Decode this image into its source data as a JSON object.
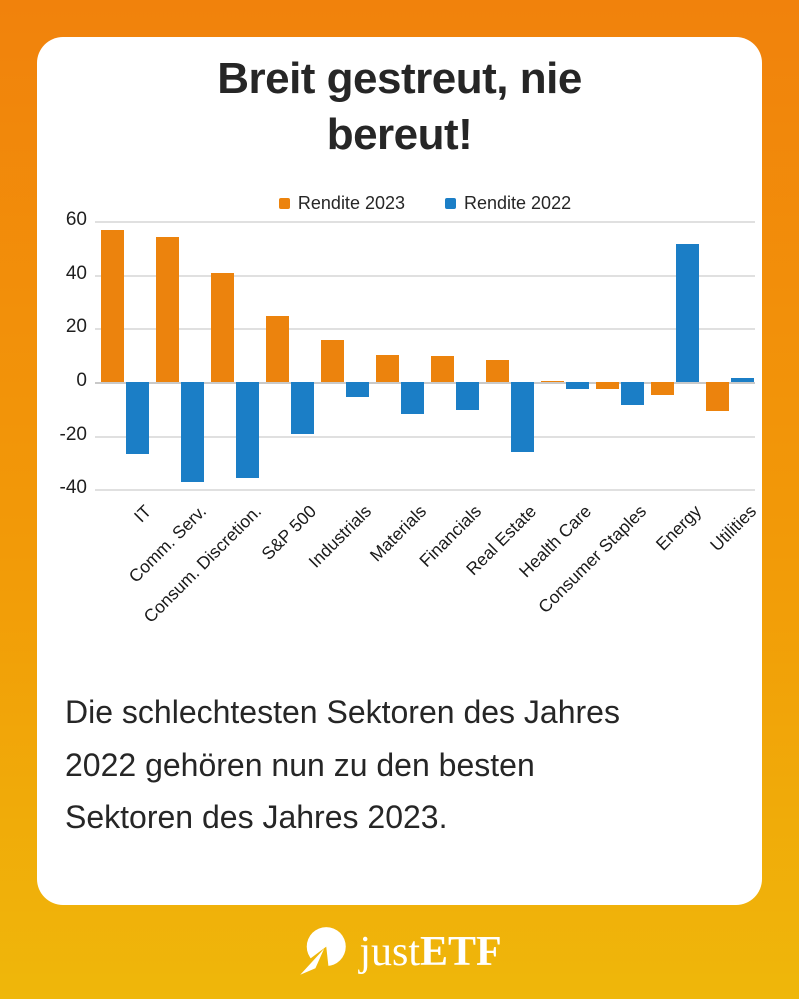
{
  "headline": {
    "lines": [
      "Breit gestreut, nie",
      "bereut!"
    ],
    "full": "Breit gestreut, nie bereut!"
  },
  "caption": {
    "lines": [
      "Die schlechtesten Sektoren des Jahres",
      "2022 gehören nun zu den besten",
      "Sektoren des Jahres 2023."
    ],
    "full": "Die schlechtesten Sektoren des Jahres 2022 gehören nun zu den besten Sektoren des Jahres 2023."
  },
  "footer": {
    "brand_just": "just",
    "brand_etf": "ETF",
    "logo_icon": "justetf-circle-arrow"
  },
  "colors": {
    "background_gradient_top": "#F1820C",
    "background_gradient_bottom": "#EFB70A",
    "card_background": "#FFFFFF",
    "text_dark": "#262626",
    "gridline": "#E0E0E0",
    "rendite_2023_orange": "#EC830D",
    "rendite_2022_blue": "#1B7EC6"
  },
  "chart_data": {
    "type": "bar",
    "title": "",
    "xlabel": "",
    "ylabel": "",
    "categories": [
      "IT",
      "Comm. Serv.",
      "Consum. Discretion.",
      "S&P 500",
      "Industrials",
      "Materials",
      "Financials",
      "Real Estate",
      "Health Care",
      "Consumer Staples",
      "Energy",
      "Utilities"
    ],
    "series": [
      {
        "name": "Rendite 2023",
        "color": "#EC830D",
        "values": [
          56.5,
          54,
          40.5,
          24.5,
          15.5,
          10,
          9.5,
          8,
          0.5,
          -2.5,
          -5,
          -11
        ]
      },
      {
        "name": "Rendite 2022",
        "color": "#1B7EC6",
        "values": [
          -27,
          -37.5,
          -36,
          -19.5,
          -5.5,
          -12,
          -10.5,
          -26,
          -2.5,
          -8.5,
          51.5,
          1.5
        ]
      }
    ],
    "yticks": [
      60,
      40,
      20,
      0,
      -20,
      -40
    ],
    "ylim": [
      -45,
      62
    ],
    "grid": true,
    "legend_position": "top",
    "x_labels_rotation_deg": -45
  }
}
